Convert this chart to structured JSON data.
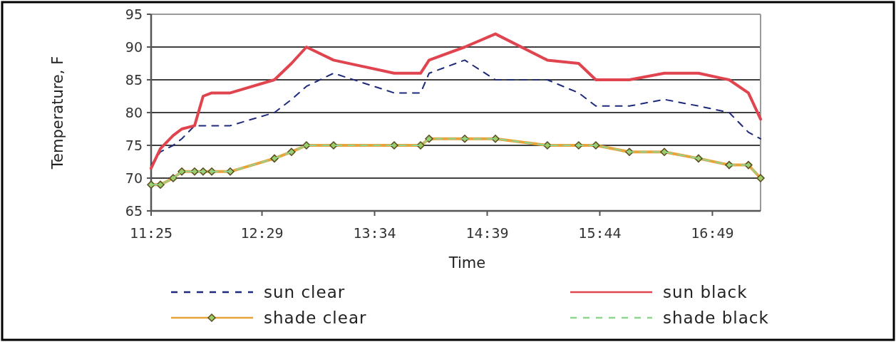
{
  "chart_data": {
    "type": "line",
    "xlabel": "Time",
    "ylabel": "Temperature, F",
    "x": [
      11.4167,
      11.506,
      11.629,
      11.712,
      11.835,
      11.917,
      12.0,
      12.178,
      12.603,
      12.767,
      12.911,
      13.172,
      13.755,
      14.009,
      14.091,
      14.434,
      14.729,
      15.229,
      15.53,
      15.695,
      16.018,
      16.354,
      16.683,
      16.978,
      17.163,
      17.28
    ],
    "series": [
      {
        "name": "sun clear",
        "color": "#1f2a7a",
        "line_style": "dashed",
        "marker": "none",
        "values": [
          72,
          74,
          75,
          76,
          78,
          78,
          78,
          78,
          80,
          82,
          84,
          86,
          83,
          83,
          86,
          88,
          85,
          85,
          83,
          81,
          81,
          82,
          81,
          80,
          77,
          76
        ]
      },
      {
        "name": "sun black",
        "color": "#e0454f",
        "line_style": "solid",
        "marker": "none",
        "values": [
          71.5,
          74.5,
          76.5,
          77.5,
          78,
          82.5,
          83,
          83,
          85,
          87.5,
          90,
          88,
          86,
          86,
          88,
          90,
          92,
          88,
          87.5,
          85,
          85,
          86,
          86,
          85,
          83,
          79
        ]
      },
      {
        "name": "shade clear",
        "color": "#e8a33a",
        "line_style": "solid",
        "marker": "diamond",
        "values": [
          69,
          69,
          70,
          71,
          71,
          71,
          71,
          71,
          73,
          74,
          75,
          75,
          75,
          75,
          76,
          76,
          76,
          75,
          75,
          75,
          74,
          74,
          73,
          72,
          72,
          70
        ]
      },
      {
        "name": "shade black",
        "color": "#8fd48f",
        "line_style": "dashed",
        "marker": "none",
        "values": [
          69,
          69,
          70,
          71,
          71,
          71,
          71,
          71,
          73,
          74,
          75,
          75,
          75,
          75,
          76,
          76,
          76,
          75,
          75,
          75,
          74,
          74,
          73,
          72,
          72,
          70
        ]
      }
    ],
    "xlim": [
      11.4167,
      17.28
    ],
    "xticks": [
      {
        "value": 11.4167,
        "label": "11:25"
      },
      {
        "value": 12.4833,
        "label": "12:29"
      },
      {
        "value": 13.5667,
        "label": "13:34"
      },
      {
        "value": 14.65,
        "label": "14:39"
      },
      {
        "value": 15.7333,
        "label": "15:44"
      },
      {
        "value": 16.8167,
        "label": "16:49"
      }
    ],
    "ylim": [
      65,
      95
    ],
    "yticks": [
      65,
      70,
      75,
      80,
      85,
      90,
      95
    ],
    "grid": "y",
    "legend": "bottom"
  }
}
